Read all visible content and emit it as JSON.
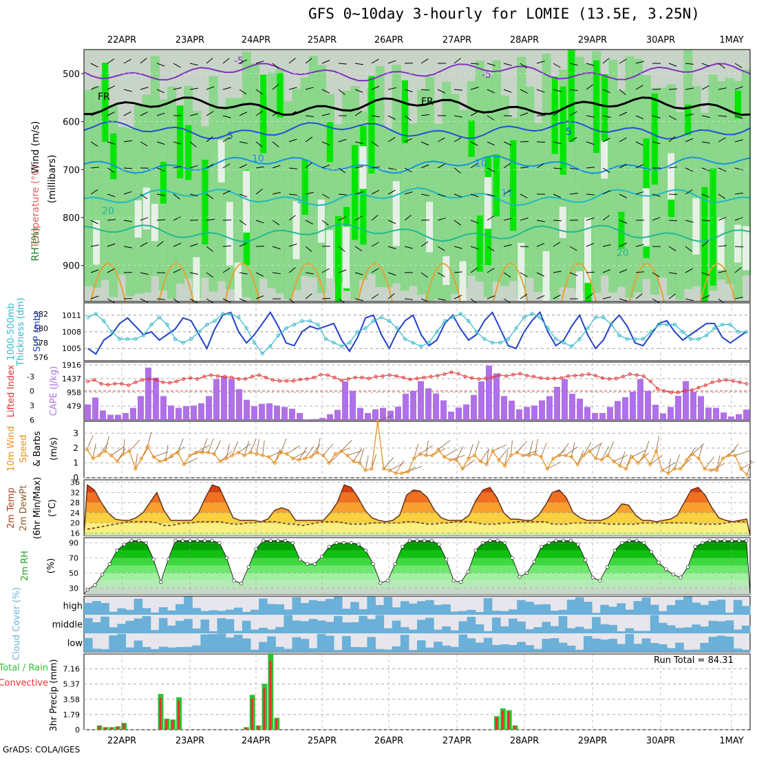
{
  "title": "GFS 0~10day 3-hourly for LOMIE (13.5E, 3.25N)",
  "credit": "GrADS: COLA/IGES",
  "run_total": "Run Total = 84.31",
  "colors": {
    "rh_dark_green": "#00e600",
    "rh_green": "#78d878",
    "rh_gray": "#c8d4c8",
    "rh_light": "#e6f0e6",
    "slp": "#2040c8",
    "thickness": "#30b8c8",
    "lifted_index": "#e03030",
    "cape": "#b070e8",
    "wind10": "#e89020",
    "cloud": "#6ab0d8",
    "cloud_bg": "#e6e6ec",
    "precip_total": "#30c030",
    "precip_conv": "#e83030"
  },
  "chart_data": [
    {
      "type": "heatmap",
      "panel": "upper-air",
      "ylabel_wind": "Wind (m/s)",
      "ylabel_temp": "Temperature (°C)",
      "ylabel_rh": "RH (%)",
      "ylabel_units": "(millibars)",
      "yticks": [
        "500",
        "600",
        "700",
        "800",
        "900"
      ],
      "ylim": [
        450,
        975
      ],
      "y_log": false,
      "xticks_top": [
        "22APR",
        "23APR",
        "24APR",
        "25APR",
        "26APR",
        "27APR",
        "28APR",
        "29APR",
        "30APR",
        "1MAY"
      ],
      "contour_labels": [
        "-5",
        "-5",
        "FR",
        "FR",
        "5",
        "5",
        "10",
        "10",
        "15",
        "15",
        "20",
        "20"
      ],
      "temperature_levels_mb": [
        {
          "label": "-5",
          "mb": 497
        },
        {
          "label": "FR",
          "mb": 568
        },
        {
          "label": "5",
          "mb": 618
        },
        {
          "label": "10",
          "mb": 690
        },
        {
          "label": "15",
          "mb": 757
        },
        {
          "label": "20",
          "mb": 832
        }
      ]
    },
    {
      "type": "line",
      "panel": "slp-thickness",
      "ylabel_left": "Thickness (dm)",
      "ylabel_left2": "1000-500mb",
      "ylabel_right": "SLP (mb)",
      "yticks_left": [
        "576",
        "578",
        "580",
        "582"
      ],
      "ylim_left": [
        575.5,
        583.5
      ],
      "yticks_right": [
        "1005",
        "1008",
        "1011"
      ],
      "ylim_right": [
        1002.8,
        1013.2
      ],
      "series": [
        {
          "name": "SLP (mb)",
          "axis": "right",
          "values": [
            1005,
            1004,
            1006.5,
            1007.5,
            1009.5,
            1010.5,
            1009,
            1007.5,
            1008,
            1006.5,
            1007.5,
            1008.5,
            1010.5,
            1010,
            1007.5,
            1005,
            1008.5,
            1011,
            1011.5,
            1008,
            1006,
            1007.5,
            1009.5,
            1011.5,
            1009,
            1006,
            1005.5,
            1008,
            1009,
            1008.5,
            1009,
            1009.5,
            1006.5,
            1004.5,
            1007,
            1010.5,
            1011,
            1007.5,
            1005,
            1008,
            1010,
            1011,
            1007.5,
            1005.5,
            1006.5,
            1009.5,
            1011,
            1008.5,
            1006.5,
            1007.5,
            1010,
            1011.5,
            1008.5,
            1005.5,
            1005,
            1008,
            1010,
            1011.5,
            1008,
            1005.5,
            1006.5,
            1009,
            1011,
            1007.5,
            1005,
            1006.5,
            1009.5,
            1011,
            1009,
            1006,
            1005.5,
            1007.5,
            1009.5,
            1010,
            1008,
            1006.5,
            1007.5,
            1008.5,
            1009.5,
            1009.5,
            1007,
            1006,
            1007,
            1008
          ]
        },
        {
          "name": "Thickness (dm)",
          "axis": "left",
          "values": [
            581.5,
            582,
            581,
            579.5,
            578.5,
            578.5,
            578.5,
            579,
            580.5,
            581.5,
            580.5,
            578.5,
            578,
            578.5,
            579.5,
            580.5,
            581,
            582,
            582,
            581.5,
            580,
            578,
            576.5,
            577.5,
            579,
            580,
            580.5,
            581,
            581,
            580.5,
            578.5,
            578,
            577.5,
            578,
            579.5,
            580,
            581,
            581.5,
            581,
            580,
            578.5,
            578,
            577.5,
            578,
            579.5,
            581,
            581.5,
            582,
            581,
            579.5,
            578.5,
            578,
            578,
            578.5,
            580,
            581.5,
            582,
            581.5,
            580,
            578.5,
            578,
            577.5,
            578.5,
            580,
            581.5,
            581.5,
            580.5,
            579,
            578.5,
            578.5,
            578.5,
            579.5,
            580.5,
            580.5,
            580.5,
            579.5,
            578.5,
            578.5,
            579,
            580,
            580.5,
            580.5,
            579.5,
            579.5
          ]
        }
      ]
    },
    {
      "type": "bar",
      "panel": "lifted-index-cape",
      "ylabel_left": "Lifted Index",
      "ylabel_right": "CAPE (J/kg)",
      "yticks_left": [
        "-3",
        "0",
        "3",
        "6"
      ],
      "ylim_left": [
        6,
        -6
      ],
      "yticks_right": [
        "479",
        "958",
        "1437",
        "1916"
      ],
      "ylim_right": [
        0,
        1916
      ],
      "series": [
        {
          "name": "CAPE (J/kg)",
          "values": [
            540,
            780,
            330,
            180,
            180,
            240,
            420,
            830,
            1820,
            1470,
            830,
            500,
            420,
            480,
            500,
            580,
            830,
            1420,
            1510,
            1420,
            1070,
            700,
            480,
            560,
            580,
            500,
            450,
            390,
            240,
            20,
            30,
            70,
            200,
            350,
            1340,
            1010,
            420,
            240,
            370,
            420,
            320,
            460,
            910,
            1010,
            1350,
            1100,
            920,
            680,
            290,
            430,
            540,
            870,
            1340,
            1890,
            1620,
            830,
            670,
            370,
            450,
            500,
            680,
            830,
            1150,
            1420,
            910,
            740,
            450,
            240,
            240,
            450,
            660,
            790,
            980,
            1420,
            1010,
            530,
            230,
            450,
            840,
            1350,
            980,
            830,
            430,
            420,
            260,
            120,
            200,
            360
          ]
        },
        {
          "name": "Lifted Index",
          "values": [
            -2,
            -2.3,
            -1.5,
            -1.3,
            -1.5,
            -1.5,
            -1.2,
            -1.8,
            -2.3,
            -2.5,
            -2.3,
            -1.8,
            -1.7,
            -2,
            -2.5,
            -2.7,
            -2.5,
            -3,
            -3.3,
            -3.1,
            -3,
            -2.8,
            -2.5,
            -2.5,
            -3,
            -3.3,
            -2.8,
            -2.3,
            -2.1,
            -2.1,
            -2.1,
            -2.4,
            -2.5,
            -2.8,
            -3.4,
            -3.3,
            -2.8,
            -2.2,
            -2.5,
            -2.8,
            -2.8,
            -2.6,
            -3,
            -3.1,
            -3.3,
            -3.1,
            -2.8,
            -2.4,
            -2.6,
            -2.8,
            -3,
            -3.2,
            -3.5,
            -3.9,
            -3.6,
            -3,
            -2.7,
            -2.5,
            -2.6,
            -2.8,
            -3.3,
            -3.1,
            -3.4,
            -3.6,
            -3.2,
            -3,
            -2.7,
            -2.6,
            -2.6,
            -2.7,
            -3.1,
            -3.2,
            -3.3,
            -3.5,
            -3.2,
            -2.7,
            -2.5,
            -2.6,
            -3,
            -3.5,
            -3.3,
            -3.1,
            -2,
            -0.5,
            0,
            0.3,
            0.3,
            0,
            -0.2,
            -0.7,
            -1.2,
            -1.8,
            -2.1,
            -2.3,
            -2.1,
            -1.8,
            -1.5
          ]
        }
      ]
    },
    {
      "type": "line",
      "panel": "wind-10m",
      "ylabel": "10m Wind Speed (m/s) & Barbs",
      "yticks": [
        "0",
        "1",
        "2",
        "3"
      ],
      "ylim": [
        0,
        3.8
      ],
      "series": [
        {
          "name": "10m Wind Speed",
          "values": [
            1.9,
            1.3,
            1.5,
            1.8,
            1.5,
            1.1,
            1.6,
            1.8,
            0.6,
            1.3,
            2.1,
            1.4,
            1.1,
            1.2,
            1.5,
            1.7,
            0.9,
            1.5,
            1.7,
            1.7,
            1.7,
            1.6,
            1.1,
            1.3,
            1.5,
            1.7,
            1.5,
            1.7,
            1.6,
            1.5,
            1.4,
            1.0,
            1.7,
            1.6,
            1.3,
            1.2,
            1.3,
            1.4,
            1.7,
            1.5,
            1.0,
            1.6,
            1.8,
            1.5,
            1.1,
            1.0,
            0.5,
            0.6,
            3.8,
            0.6,
            0.5,
            0.3,
            0.3,
            0.4,
            1.3,
            1.6,
            1.5,
            1.5,
            1.9,
            1.4,
            1.2,
            1.2,
            0.6,
            1.3,
            1.5,
            1.1,
            0.9,
            1.8,
            1.2,
            0.8,
            1.5,
            1.7,
            1.5,
            1.5,
            1.6,
            1.4,
            0.6,
            1.3,
            1.5,
            1.5,
            1.4,
            0.9,
            1.5,
            1.8,
            1.3,
            1.2,
            1.5,
            1.1,
            0.8,
            0.6,
            1.4,
            1.0,
            1.5,
            0.9,
            1.8,
            0.5,
            0.3,
            0.6,
            0.6,
            1.2,
            1.6,
            1.3,
            0.6,
            0.5,
            0.5,
            1.3,
            1.5,
            1.5,
            0.6,
            0.2
          ]
        }
      ]
    },
    {
      "type": "area",
      "panel": "temperature-2m",
      "ylabel": "2m Temp 2m DewPt (6hr Min/Max) (°C)",
      "yticks": [
        "16",
        "20",
        "24",
        "28",
        "32",
        "36"
      ],
      "ylim": [
        15,
        37
      ],
      "series": [
        {
          "name": "2m Temp",
          "values": [
            35,
            33,
            28,
            24,
            21.5,
            21,
            21,
            22,
            24,
            28,
            32,
            25,
            21,
            21,
            21,
            21,
            24,
            30,
            35,
            34,
            28,
            22,
            21,
            21,
            21,
            20.5,
            21.5,
            25,
            26,
            25,
            21,
            21,
            21,
            21,
            21,
            24,
            28,
            35,
            34,
            30,
            25,
            22,
            21,
            20.5,
            21,
            23,
            31,
            33,
            32.5,
            30,
            25,
            22,
            21,
            21,
            21,
            23,
            29,
            33,
            34,
            30,
            24,
            21.5,
            21.5,
            21,
            21,
            23,
            27,
            32,
            33,
            30,
            24,
            22,
            21,
            21,
            21,
            22,
            24,
            27.5,
            27,
            23,
            21,
            21,
            20.5,
            21,
            21.5,
            23,
            28,
            33,
            34,
            31,
            26,
            22,
            21,
            20.5,
            21,
            21.5
          ]
        },
        {
          "name": "2m DewPt",
          "values": [
            17.5,
            18,
            18.5,
            19,
            19.5,
            20,
            20.5,
            20.5,
            20.5,
            20.5,
            20,
            19,
            19,
            19.5,
            20,
            20,
            20.5,
            20.5,
            20.5,
            20.5,
            20,
            19.5,
            19.5,
            20,
            20,
            20.5,
            20.5,
            20.5,
            20,
            19.5,
            19.5,
            19,
            19.5,
            20,
            20.5,
            20.5,
            20.5,
            20,
            19.5,
            19.5,
            19.5,
            20,
            20,
            20,
            20,
            20,
            20.5,
            20.5,
            20,
            19.5,
            19.5,
            20,
            20,
            20.5,
            20.5,
            20.5,
            20,
            19.5,
            19.5,
            19.5,
            20,
            20,
            20.5,
            20.5,
            20.5,
            20.5,
            20.5,
            19.5,
            19.5,
            19.5,
            20,
            20,
            20,
            20,
            20,
            19.5,
            19.5,
            19.5,
            19.5,
            19.5,
            20,
            20,
            20,
            20,
            20,
            20,
            20,
            20,
            19.5,
            19.5,
            19.5,
            19.5,
            20,
            20.5,
            20.5,
            20.5
          ]
        }
      ]
    },
    {
      "type": "area",
      "panel": "rh-2m",
      "ylabel": "2m RH (%)",
      "yticks": [
        "30",
        "50",
        "70",
        "90"
      ],
      "ylim": [
        22,
        97
      ],
      "series": [
        {
          "name": "2m RH",
          "values": [
            28,
            34,
            48,
            62,
            80,
            88,
            93,
            93,
            90,
            68,
            38,
            68,
            93,
            93,
            93,
            93,
            93,
            93,
            90,
            70,
            40,
            36,
            58,
            82,
            93,
            93,
            93,
            93,
            90,
            68,
            62,
            62,
            72,
            85,
            90,
            90,
            90,
            88,
            80,
            62,
            37,
            40,
            62,
            85,
            93,
            93,
            93,
            93,
            88,
            68,
            40,
            38,
            52,
            80,
            90,
            93,
            93,
            90,
            70,
            45,
            50,
            65,
            85,
            90,
            93,
            93,
            93,
            88,
            67,
            44,
            40,
            58,
            80,
            90,
            93,
            93,
            90,
            78,
            64,
            55,
            48,
            44,
            58,
            85,
            90,
            93,
            93,
            93,
            93,
            93,
            93
          ]
        }
      ]
    },
    {
      "type": "heatmap",
      "panel": "cloud-cover",
      "ylabel": "Cloud Cover (%)",
      "levels": [
        "high",
        "middle",
        "low"
      ]
    },
    {
      "type": "bar",
      "panel": "precip",
      "ylabel": "3hr Precip (mm)",
      "legend_left": "Total / Rain",
      "legend_left2": "Convective",
      "yticks": [
        "0",
        "1.79",
        "3.58",
        "5.37",
        "7.16"
      ],
      "ylim": [
        0,
        8.9
      ],
      "xticks_bottom": [
        "22APR",
        "23APR",
        "24APR",
        "25APR",
        "26APR",
        "27APR",
        "28APR",
        "29APR",
        "30APR",
        "1MAY"
      ],
      "series": [
        {
          "name": "Total / Rain",
          "values": [
            0,
            0,
            0.5,
            0.3,
            0.3,
            0.4,
            0.8,
            0,
            0,
            0,
            0,
            0,
            4.2,
            1.3,
            1.2,
            3.8,
            0,
            0,
            0,
            0,
            0,
            0,
            0,
            0,
            0,
            0,
            0.3,
            4.1,
            0.5,
            5.4,
            9.0,
            1.4,
            0,
            0,
            0,
            0,
            0,
            0,
            0,
            0,
            0,
            0,
            0,
            0,
            0,
            0,
            0,
            0,
            0,
            0,
            0,
            0,
            0,
            0,
            0,
            0,
            0,
            0,
            0,
            0,
            0,
            0,
            0,
            0,
            0,
            0,
            0,
            1.6,
            2.5,
            2.3,
            0.5,
            0,
            0,
            0,
            0,
            0,
            0,
            0,
            0,
            0,
            0,
            0,
            0,
            0,
            0,
            0,
            0,
            0,
            0,
            0,
            0,
            0,
            0,
            0,
            0,
            0,
            0,
            0,
            0,
            0,
            0,
            0,
            0,
            0,
            0,
            0,
            0,
            0,
            0
          ]
        },
        {
          "name": "Convective",
          "values": []
        }
      ]
    }
  ]
}
